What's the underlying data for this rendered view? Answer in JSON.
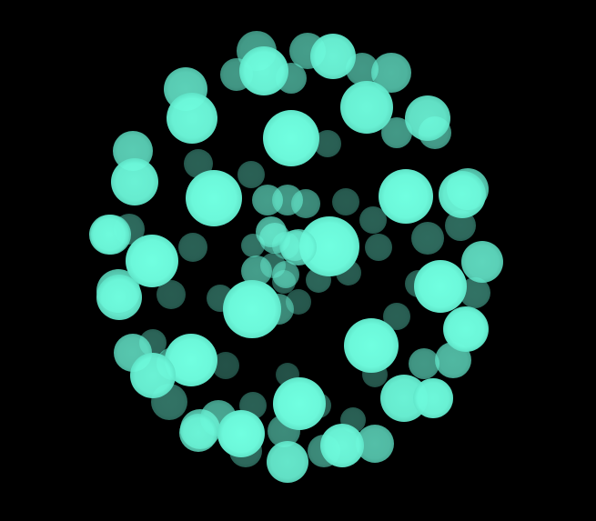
{
  "scene": {
    "background_color": "#000000",
    "ball_color": "#70FFE0",
    "depth_levels": [
      "far",
      "mid",
      "near"
    ]
  }
}
